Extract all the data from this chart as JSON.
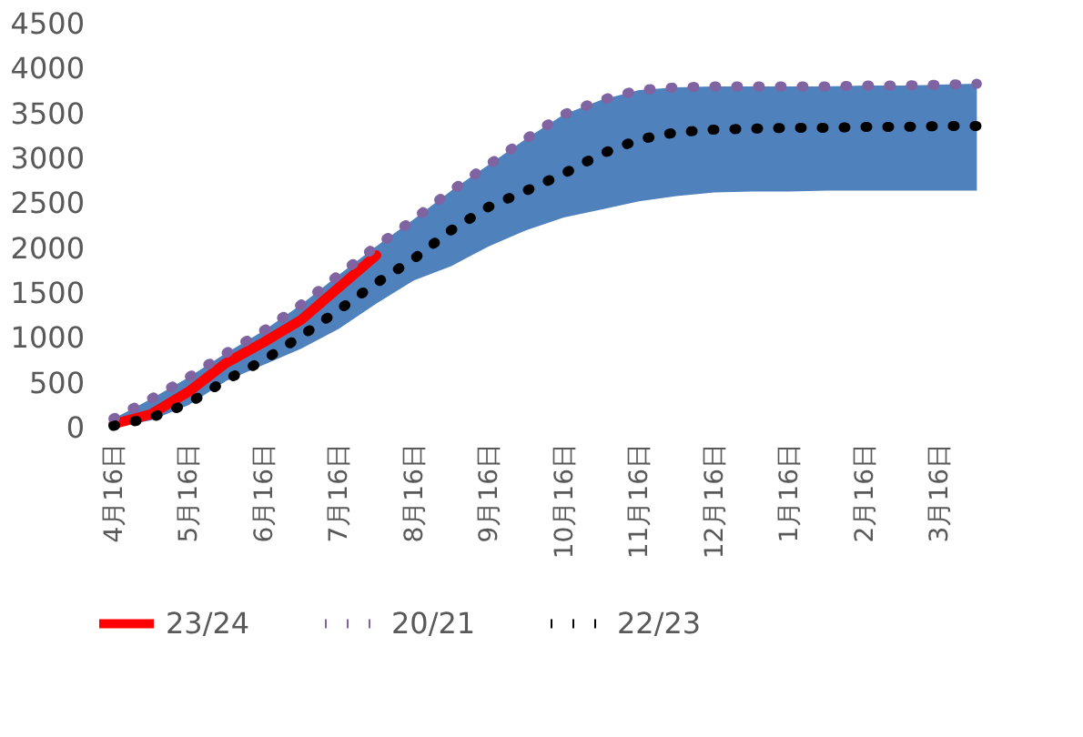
{
  "chart_data": {
    "type": "line",
    "categories": [
      "4月16日",
      null,
      "5月16日",
      null,
      "6月16日",
      null,
      "7月16日",
      null,
      "8月16日",
      null,
      "9月16日",
      null,
      "10月16日",
      null,
      "11月16日",
      null,
      "12月16日",
      null,
      "1月16日",
      null,
      "2月16日",
      null,
      "3月16日",
      null
    ],
    "ylim": [
      0,
      4500
    ],
    "yticks": [
      0,
      500,
      1000,
      1500,
      2000,
      2500,
      3000,
      3500,
      4000,
      4500
    ],
    "grid": false,
    "legend": "bottom",
    "marker": "none",
    "series": [
      {
        "name": "23/24",
        "color": "#ff0000",
        "line_style": "solid",
        "values": [
          40,
          150,
          400,
          720,
          950,
          1200,
          1560,
          1920,
          null,
          null,
          null,
          null,
          null,
          null,
          null,
          null,
          null,
          null,
          null,
          null,
          null,
          null,
          null,
          null
        ]
      },
      {
        "name": "20/21",
        "color": "#8064a2",
        "line_style": "dotted",
        "values": [
          100,
          320,
          560,
          830,
          1080,
          1370,
          1700,
          2020,
          2320,
          2640,
          2930,
          3220,
          3490,
          3650,
          3760,
          3790,
          3800,
          3800,
          3800,
          3800,
          3810,
          3810,
          3820,
          3830
        ],
        "lower": [
          0,
          80,
          250,
          520,
          700,
          880,
          1100,
          1380,
          1640,
          1800,
          2020,
          2200,
          2340,
          2430,
          2520,
          2580,
          2620,
          2630,
          2630,
          2640,
          2640,
          2640,
          2640,
          2640
        ],
        "upper": [
          100,
          320,
          560,
          830,
          1080,
          1370,
          1700,
          2020,
          2320,
          2640,
          2930,
          3220,
          3490,
          3650,
          3760,
          3790,
          3800,
          3800,
          3800,
          3800,
          3810,
          3810,
          3820,
          3830
        ]
      },
      {
        "name": "22/23",
        "color": "#000000",
        "line_style": "dotted",
        "values": [
          20,
          110,
          270,
          530,
          750,
          1020,
          1310,
          1610,
          1880,
          2200,
          2460,
          2640,
          2830,
          3050,
          3210,
          3290,
          3320,
          3330,
          3340,
          3340,
          3350,
          3350,
          3360,
          3360
        ]
      }
    ]
  }
}
